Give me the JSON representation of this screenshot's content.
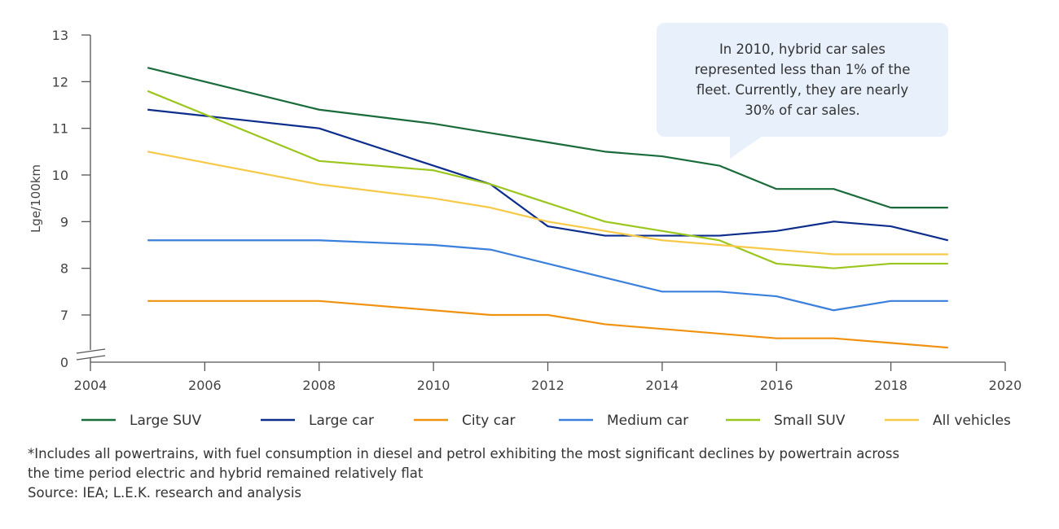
{
  "chart_data": {
    "type": "line",
    "title": "",
    "xlabel": "",
    "ylabel": "Lge/100km",
    "xlim": [
      2004,
      2020
    ],
    "x_ticks": [
      "2004",
      "2006",
      "2008",
      "2010",
      "2012",
      "2014",
      "2016",
      "2018",
      "2020"
    ],
    "y_ticks": [
      "0",
      "7",
      "8",
      "9",
      "10",
      "11",
      "12",
      "13"
    ],
    "y_axis_break": true,
    "grid": false,
    "legend_position": "bottom",
    "x": [
      2005,
      2008,
      2010,
      2011,
      2012,
      2013,
      2014,
      2015,
      2016,
      2017,
      2018,
      2019
    ],
    "series": [
      {
        "name": "Large SUV",
        "color": "#1a6b3a",
        "values": [
          12.3,
          11.4,
          11.1,
          10.9,
          10.7,
          10.5,
          10.4,
          10.2,
          9.7,
          9.7,
          9.3,
          9.3
        ]
      },
      {
        "name": "Large car",
        "color": "#0d2d8c",
        "values": [
          11.4,
          11.0,
          10.2,
          9.8,
          8.9,
          8.7,
          8.7,
          8.7,
          8.8,
          9.0,
          8.9,
          8.6
        ]
      },
      {
        "name": "City car",
        "color": "#f0920f",
        "values": [
          7.3,
          7.3,
          7.1,
          7.0,
          7.0,
          6.8,
          6.7,
          6.6,
          6.5,
          6.5,
          6.4,
          6.3
        ]
      },
      {
        "name": "Medium car",
        "color": "#3a7fdc",
        "values": [
          8.6,
          8.6,
          8.5,
          8.4,
          8.1,
          7.8,
          7.5,
          7.5,
          7.4,
          7.1,
          7.3,
          7.3
        ]
      },
      {
        "name": "Small SUV",
        "color": "#9bc61e",
        "values": [
          11.8,
          10.3,
          10.1,
          9.8,
          9.4,
          9.0,
          8.8,
          8.6,
          8.1,
          8.0,
          8.1,
          8.1
        ]
      },
      {
        "name": "All vehicles",
        "color": "#f7c948",
        "values": [
          10.5,
          9.8,
          9.5,
          9.3,
          9.0,
          8.8,
          8.6,
          8.5,
          8.4,
          8.3,
          8.3,
          8.3
        ]
      }
    ],
    "annotation": [
      "In 2010, hybrid car sales",
      "represented less than 1% of the",
      "fleet. Currently, they are nearly",
      "30% of car sales."
    ]
  },
  "footnote": [
    "*Includes all powertrains, with fuel consumption in diesel and petrol exhibiting the most significant declines by powertrain across",
    "the time period electric and hybrid remained relatively flat"
  ],
  "source": "Source: IEA; L.E.K. research and analysis"
}
